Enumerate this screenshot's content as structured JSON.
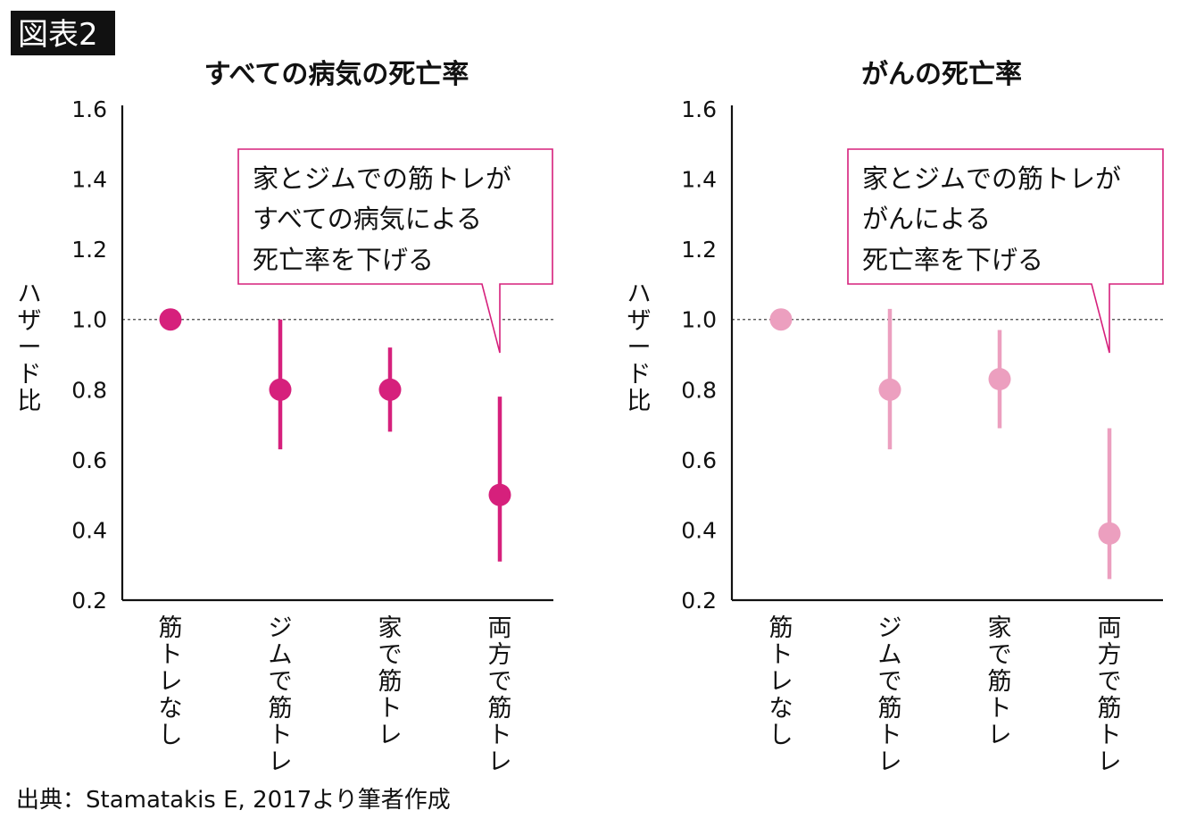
{
  "figure_tag": "図表2",
  "source": "出典：Stamatakis E, 2017より筆者作成",
  "colors": {
    "all_cause": "#d6207c",
    "cancer": "#ec9fbf",
    "callout_border": "#d6207c"
  },
  "chart_data": [
    {
      "type": "scatter",
      "title": "すべての病気の死亡率",
      "ylabel": "ハザード比",
      "ylim": [
        0.2,
        1.6
      ],
      "yticks": [
        "1.6",
        "1.4",
        "1.2",
        "1.0",
        "0.8",
        "0.6",
        "0.4",
        "0.2"
      ],
      "reference_line": 1.0,
      "categories": [
        "筋トレなし",
        "ジムで筋トレ",
        "家で筋トレ",
        "両方で筋トレ"
      ],
      "values": [
        1.0,
        0.8,
        0.8,
        0.5
      ],
      "ci_low": [
        1.0,
        0.63,
        0.68,
        0.31
      ],
      "ci_high": [
        1.0,
        1.0,
        0.92,
        0.78
      ],
      "callout": [
        "家とジムでの筋トレが",
        "すべての病気による",
        "死亡率を下げる"
      ]
    },
    {
      "type": "scatter",
      "title": "がんの死亡率",
      "ylabel": "ハザード比",
      "ylim": [
        0.2,
        1.6
      ],
      "yticks": [
        "1.6",
        "1.4",
        "1.2",
        "1.0",
        "0.8",
        "0.6",
        "0.4",
        "0.2"
      ],
      "reference_line": 1.0,
      "categories": [
        "筋トレなし",
        "ジムで筋トレ",
        "家で筋トレ",
        "両方で筋トレ"
      ],
      "values": [
        1.0,
        0.8,
        0.83,
        0.39
      ],
      "ci_low": [
        1.0,
        0.63,
        0.69,
        0.26
      ],
      "ci_high": [
        1.0,
        1.03,
        0.97,
        0.69
      ],
      "callout": [
        "家とジムでの筋トレが",
        "がんによる",
        "死亡率を下げる"
      ]
    }
  ]
}
